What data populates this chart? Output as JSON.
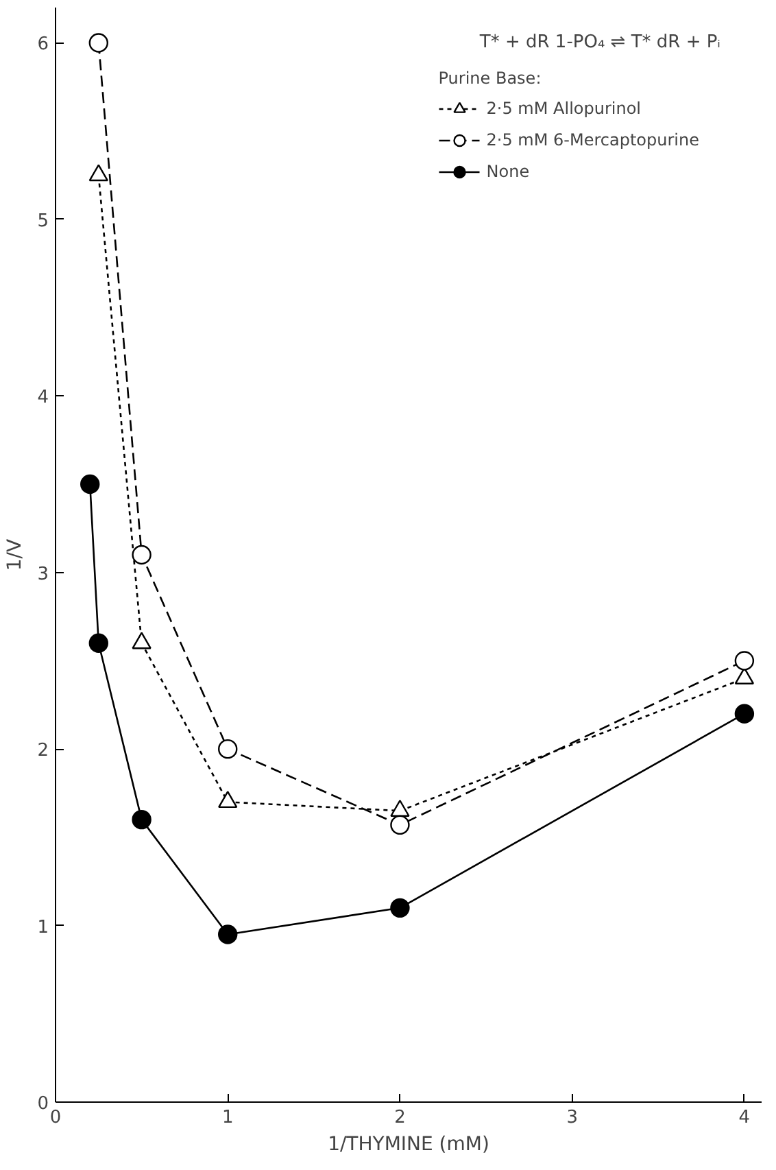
{
  "chart_data": {
    "type": "line",
    "xlabel": "1/THYMINE (mM)",
    "ylabel": "1/V",
    "legend_title": "Purine Base:",
    "annotations": [
      "T* + dR 1-PO₄ ⇌ T* dR + Pᵢ"
    ],
    "xlim": [
      0,
      4.1
    ],
    "ylim": [
      0,
      6.2
    ],
    "xticks": [
      0,
      1,
      2,
      3,
      4
    ],
    "yticks": [
      0,
      1,
      2,
      3,
      4,
      5,
      6
    ],
    "grid": false,
    "legend": "top right",
    "series": [
      {
        "name": "2·5 mM Allopurinol",
        "color": "#000000",
        "marker": "triangle",
        "line_style": "dotted",
        "x": [
          0.25,
          0.5,
          1,
          2,
          4
        ],
        "values": [
          5.25,
          2.6,
          1.7,
          1.65,
          2.4
        ]
      },
      {
        "name": "2·5 mM 6-Mercaptopurine",
        "color": "#000000",
        "marker": "circle",
        "line_style": "dashed",
        "x": [
          0.25,
          0.5,
          1,
          2,
          4
        ],
        "values": [
          6.0,
          3.1,
          2.0,
          1.57,
          2.5
        ]
      },
      {
        "name": "None",
        "color": "#000000",
        "marker": "circle",
        "line_style": "solid",
        "x": [
          0.2,
          0.25,
          0.5,
          1,
          2,
          4
        ],
        "values": [
          3.5,
          2.6,
          1.6,
          0.95,
          1.1,
          2.2
        ]
      }
    ]
  }
}
